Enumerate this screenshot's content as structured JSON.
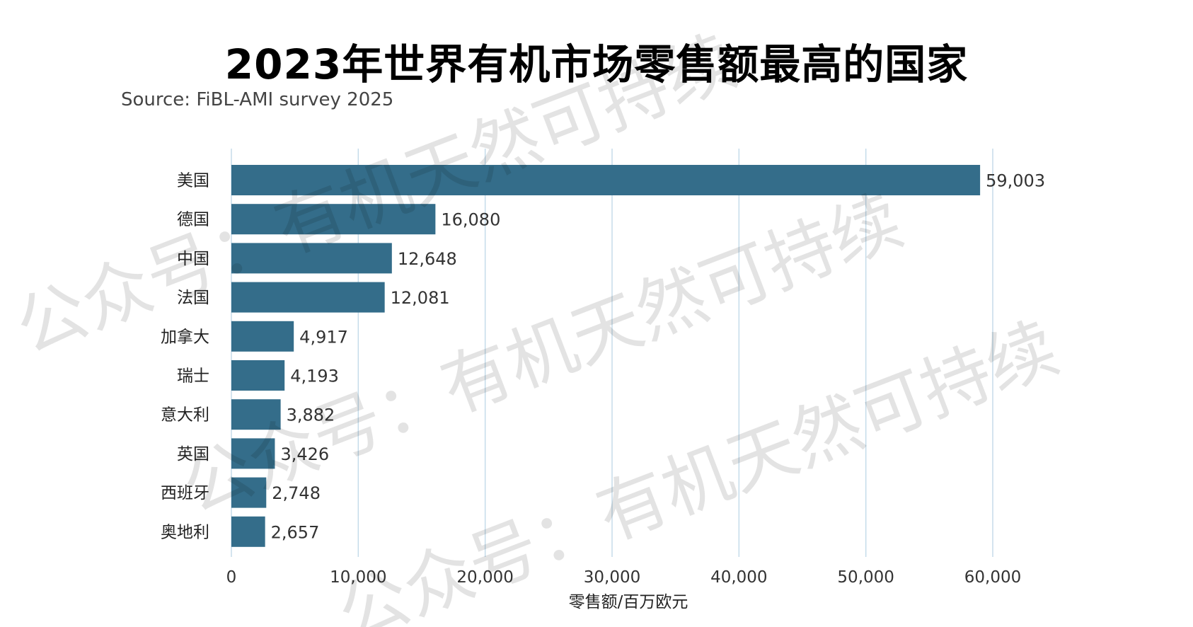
{
  "chart_data": {
    "type": "bar",
    "orientation": "horizontal",
    "title": "2023年世界有机市场零售额最高的国家",
    "subtitle": "Source: FiBL-AMI survey 2025",
    "xlabel": "零售额/百万欧元",
    "ylabel": "",
    "xlim": [
      0,
      60000
    ],
    "x_ticks": [
      0,
      10000,
      20000,
      30000,
      40000,
      50000,
      60000
    ],
    "x_tick_labels": [
      "0",
      "10,000",
      "20,000",
      "30,000",
      "40,000",
      "50,000",
      "60,000"
    ],
    "grid": "vertical",
    "bar_color": "#346d8a",
    "grid_color": "#c5dcea",
    "categories": [
      "美国",
      "德国",
      "中国",
      "法国",
      "加拿大",
      "瑞士",
      "意大利",
      "英国",
      "西班牙",
      "奥地利"
    ],
    "values": [
      59003,
      16080,
      12648,
      12081,
      4917,
      4193,
      3882,
      3426,
      2748,
      2657
    ],
    "value_labels": [
      "59,003",
      "16,080",
      "12,648",
      "12,081",
      "4,917",
      "4,193",
      "3,882",
      "3,426",
      "2,748",
      "2,657"
    ]
  },
  "watermark": {
    "text": "公众号：有机天然可持续"
  }
}
